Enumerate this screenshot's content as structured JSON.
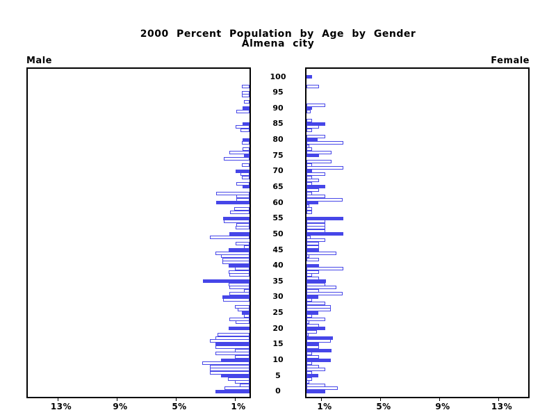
{
  "title": {
    "line1": "2000 Percent Population by Age by Gender",
    "line2": "Almena city"
  },
  "chart_data": {
    "type": "bar",
    "subtype": "population-pyramid",
    "title": "2000 Percent Population by Age by Gender",
    "subtitle": "Almena city",
    "left_header": "Male",
    "right_header": "Female",
    "value_unit": "percent",
    "bar_color": "#4646e8",
    "axis_color": "#000000",
    "age_axis": {
      "min": 0,
      "max": 100,
      "tick_step": 5,
      "tick_labels": [
        "0",
        "5",
        "10",
        "15",
        "20",
        "25",
        "30",
        "35",
        "40",
        "45",
        "50",
        "55",
        "60",
        "65",
        "70",
        "75",
        "80",
        "85",
        "90",
        "95",
        "100"
      ]
    },
    "pct_axis": {
      "tick_values": [
        13,
        9,
        5,
        1
      ],
      "male_tick_labels": [
        "13%",
        "9%",
        "5%",
        "1%"
      ],
      "female_tick_labels": [
        "1%",
        "5%",
        "9%",
        "13%"
      ]
    },
    "series": [
      {
        "name": "Male",
        "side": "left",
        "point_format": [
          "age",
          "value_pct",
          "filled"
        ],
        "points": [
          [
            97,
            0.5,
            0
          ],
          [
            95,
            0.5,
            0
          ],
          [
            94,
            0.5,
            0
          ],
          [
            92,
            0.4,
            0
          ],
          [
            90,
            0.45,
            1
          ],
          [
            89,
            0.9,
            0
          ],
          [
            85,
            0.45,
            1
          ],
          [
            84,
            0.95,
            0
          ],
          [
            83,
            0.6,
            0
          ],
          [
            80,
            0.45,
            1
          ],
          [
            79,
            0.5,
            0
          ],
          [
            77,
            0.45,
            0
          ],
          [
            76,
            1.35,
            0
          ],
          [
            75,
            0.4,
            1
          ],
          [
            74,
            1.75,
            0
          ],
          [
            72,
            0.5,
            0
          ],
          [
            70,
            0.95,
            1
          ],
          [
            69,
            0.6,
            0
          ],
          [
            68,
            0.5,
            0
          ],
          [
            66,
            0.9,
            0
          ],
          [
            65,
            0.45,
            1
          ],
          [
            63,
            2.25,
            0
          ],
          [
            62,
            0.9,
            0
          ],
          [
            61,
            0.9,
            0
          ],
          [
            60,
            2.25,
            1
          ],
          [
            58,
            1.05,
            0
          ],
          [
            57,
            1.3,
            0
          ],
          [
            55,
            1.8,
            1
          ],
          [
            54,
            1.75,
            0
          ],
          [
            53,
            0.9,
            0
          ],
          [
            52,
            0.95,
            0
          ],
          [
            50,
            1.35,
            1
          ],
          [
            49,
            2.7,
            0
          ],
          [
            47,
            0.95,
            0
          ],
          [
            46,
            0.4,
            0
          ],
          [
            45,
            1.4,
            1
          ],
          [
            44,
            2.3,
            0
          ],
          [
            43,
            1.95,
            0
          ],
          [
            42,
            1.85,
            0
          ],
          [
            41,
            1.85,
            0
          ],
          [
            40,
            1.4,
            1
          ],
          [
            39,
            1.0,
            0
          ],
          [
            38,
            1.4,
            0
          ],
          [
            37,
            1.35,
            0
          ],
          [
            35,
            3.15,
            1
          ],
          [
            34,
            1.4,
            0
          ],
          [
            33,
            1.35,
            0
          ],
          [
            32,
            0.4,
            0
          ],
          [
            31,
            1.35,
            0
          ],
          [
            30,
            1.85,
            1
          ],
          [
            29,
            1.8,
            0
          ],
          [
            27,
            1.0,
            0
          ],
          [
            26,
            0.8,
            0
          ],
          [
            25,
            0.5,
            1
          ],
          [
            24,
            0.4,
            0
          ],
          [
            23,
            1.35,
            0
          ],
          [
            22,
            0.95,
            0
          ],
          [
            20,
            1.4,
            1
          ],
          [
            18,
            2.15,
            0
          ],
          [
            17,
            2.3,
            0
          ],
          [
            16,
            2.7,
            0
          ],
          [
            15,
            2.3,
            1
          ],
          [
            14,
            2.3,
            0
          ],
          [
            13,
            1.0,
            0
          ],
          [
            12,
            2.3,
            0
          ],
          [
            11,
            1.0,
            0
          ],
          [
            10,
            1.95,
            1
          ],
          [
            9,
            3.2,
            0
          ],
          [
            8,
            2.7,
            0
          ],
          [
            7,
            2.7,
            0
          ],
          [
            6,
            2.7,
            0
          ],
          [
            5,
            1.95,
            1
          ],
          [
            4,
            1.45,
            0
          ],
          [
            3,
            1.0,
            0
          ],
          [
            2,
            0.65,
            0
          ],
          [
            1,
            1.7,
            0
          ],
          [
            0,
            2.3,
            1
          ]
        ]
      },
      {
        "name": "Female",
        "side": "right",
        "point_format": [
          "age",
          "value_pct",
          "filled"
        ],
        "points": [
          [
            100,
            0.4,
            1
          ],
          [
            97,
            0.85,
            0
          ],
          [
            91,
            1.25,
            0
          ],
          [
            90,
            0.4,
            1
          ],
          [
            89,
            0.3,
            0
          ],
          [
            86,
            0.4,
            0
          ],
          [
            85,
            1.25,
            1
          ],
          [
            84,
            0.85,
            0
          ],
          [
            83,
            0.4,
            0
          ],
          [
            81,
            1.25,
            0
          ],
          [
            80,
            0.75,
            1
          ],
          [
            79,
            2.5,
            0
          ],
          [
            78,
            0.2,
            0
          ],
          [
            77,
            0.4,
            0
          ],
          [
            76,
            1.7,
            0
          ],
          [
            75,
            0.85,
            1
          ],
          [
            73,
            1.7,
            0
          ],
          [
            72,
            0.4,
            0
          ],
          [
            71,
            2.5,
            0
          ],
          [
            70,
            0.4,
            1
          ],
          [
            69,
            1.25,
            0
          ],
          [
            68,
            0.4,
            0
          ],
          [
            67,
            0.85,
            0
          ],
          [
            66,
            0.4,
            0
          ],
          [
            65,
            1.25,
            1
          ],
          [
            64,
            0.85,
            0
          ],
          [
            63,
            0.4,
            0
          ],
          [
            62,
            1.25,
            0
          ],
          [
            61,
            2.45,
            0
          ],
          [
            60,
            0.8,
            1
          ],
          [
            59,
            0.2,
            0
          ],
          [
            58,
            0.4,
            0
          ],
          [
            57,
            0.4,
            0
          ],
          [
            55,
            2.5,
            1
          ],
          [
            54,
            1.25,
            0
          ],
          [
            53,
            1.25,
            0
          ],
          [
            52,
            1.25,
            0
          ],
          [
            51,
            1.25,
            0
          ],
          [
            50,
            2.5,
            1
          ],
          [
            49,
            0.3,
            0
          ],
          [
            48,
            1.25,
            0
          ],
          [
            47,
            0.85,
            0
          ],
          [
            46,
            0.85,
            0
          ],
          [
            45,
            0.85,
            1
          ],
          [
            44,
            2.05,
            0
          ],
          [
            43,
            0.2,
            0
          ],
          [
            42,
            0.85,
            0
          ],
          [
            40,
            0.85,
            1
          ],
          [
            39,
            2.5,
            0
          ],
          [
            38,
            0.85,
            0
          ],
          [
            37,
            0.4,
            0
          ],
          [
            36,
            0.85,
            0
          ],
          [
            35,
            1.3,
            1
          ],
          [
            34,
            1.25,
            0
          ],
          [
            33,
            2.05,
            0
          ],
          [
            32,
            0.85,
            0
          ],
          [
            31,
            2.45,
            0
          ],
          [
            30,
            0.8,
            1
          ],
          [
            29,
            0.4,
            0
          ],
          [
            28,
            1.25,
            0
          ],
          [
            27,
            1.65,
            0
          ],
          [
            26,
            1.65,
            0
          ],
          [
            25,
            0.8,
            1
          ],
          [
            24,
            0.4,
            0
          ],
          [
            23,
            1.25,
            0
          ],
          [
            22,
            0.2,
            0
          ],
          [
            21,
            0.85,
            0
          ],
          [
            20,
            1.25,
            1
          ],
          [
            19,
            0.7,
            0
          ],
          [
            18,
            0.15,
            0
          ],
          [
            17,
            1.8,
            1
          ],
          [
            16,
            1.65,
            0
          ],
          [
            15,
            0.85,
            1
          ],
          [
            14,
            0.85,
            0
          ],
          [
            13,
            1.7,
            1
          ],
          [
            12,
            0.4,
            0
          ],
          [
            11,
            0.85,
            0
          ],
          [
            10,
            1.65,
            1
          ],
          [
            9,
            0.4,
            0
          ],
          [
            8,
            0.85,
            0
          ],
          [
            7,
            1.25,
            0
          ],
          [
            6,
            0.4,
            0
          ],
          [
            5,
            0.8,
            1
          ],
          [
            4,
            0.4,
            0
          ],
          [
            3,
            0.2,
            0
          ],
          [
            2,
            1.25,
            0
          ],
          [
            1,
            2.1,
            0
          ],
          [
            0,
            1.25,
            1
          ]
        ]
      }
    ]
  }
}
